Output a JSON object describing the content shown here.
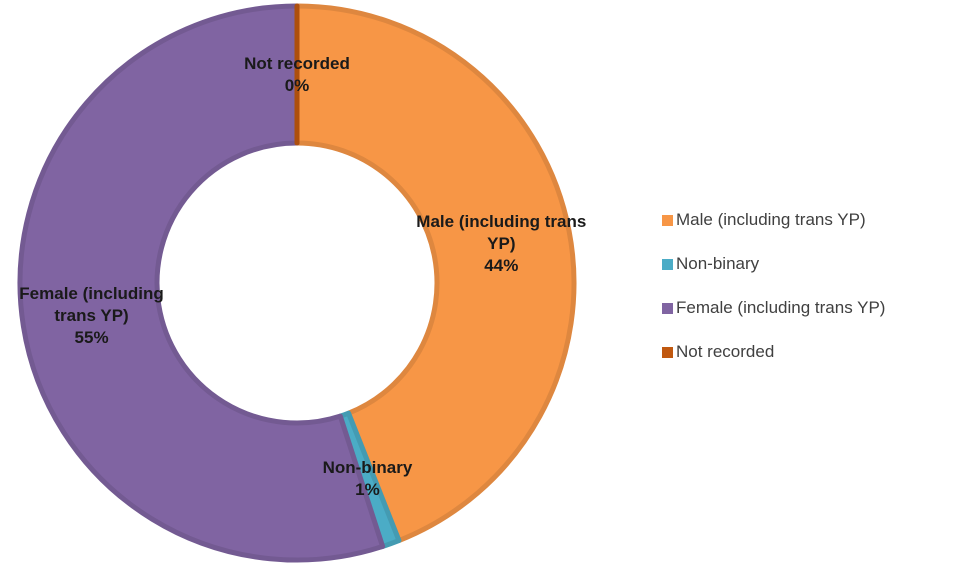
{
  "chart_data": {
    "type": "donut",
    "categories": [
      "Male (including trans YP)",
      "Non-binary",
      "Female (including trans YP)",
      "Not recorded"
    ],
    "values": [
      44,
      1,
      55,
      0
    ],
    "value_labels": [
      "44%",
      "1%",
      "55%",
      "0%"
    ],
    "colors": [
      "#f79646",
      "#4bacc6",
      "#8064a2",
      "#c0580f"
    ],
    "legend": "right"
  }
}
